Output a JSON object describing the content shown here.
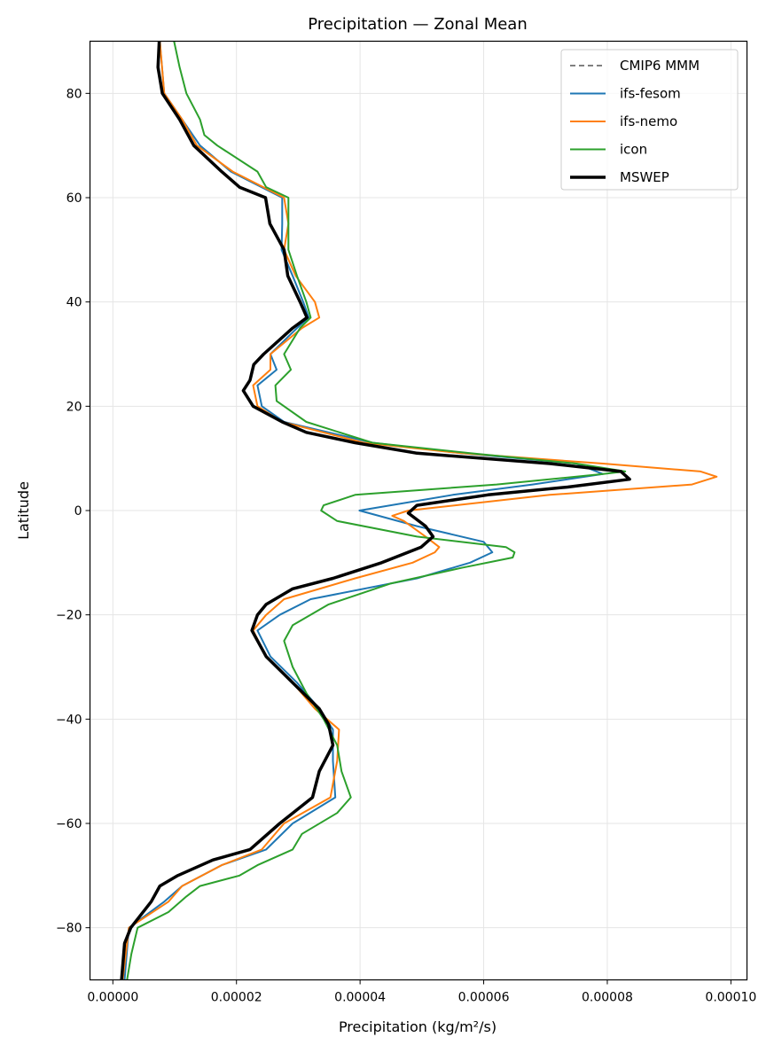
{
  "chart_data": {
    "type": "line",
    "title": "Precipitation — Zonal Mean",
    "xlabel": "Precipitation (kg/m²/s)",
    "ylabel": "Latitude",
    "xlim": [
      -3.7e-06,
      0.0001026
    ],
    "ylim": [
      -90,
      90
    ],
    "xticks": [
      0,
      2e-05,
      4e-05,
      6e-05,
      8e-05,
      0.0001
    ],
    "xtick_labels": [
      "0.00000",
      "0.00002",
      "0.00004",
      "0.00006",
      "0.00008",
      "0.00010"
    ],
    "yticks": [
      80,
      60,
      40,
      20,
      0,
      -20,
      -40,
      -60,
      -80
    ],
    "ytick_labels": [
      "80",
      "60",
      "40",
      "20",
      "0",
      "−20",
      "−40",
      "−60",
      "−80"
    ],
    "grid": true,
    "legend_position": "top-right",
    "series": [
      {
        "name": "CMIP6 MMM",
        "color": "#808080",
        "style": "dashed",
        "lat": [],
        "values": []
      },
      {
        "name": "ifs-fesom",
        "color": "#1f77b4",
        "style": "solid",
        "lat": [
          90,
          80,
          75,
          70,
          65,
          60,
          55,
          50,
          45,
          40,
          37,
          35,
          30,
          27,
          24,
          20,
          17,
          13,
          11,
          9,
          7,
          5,
          3,
          0,
          -3,
          -6,
          -8,
          -10,
          -13,
          -17,
          -20,
          -23,
          -28,
          -33,
          -38,
          -42,
          -48,
          -55,
          -60,
          -65,
          -68,
          -72,
          -75,
          -80,
          -90
        ],
        "values": [
          7.6e-06,
          8.3e-06,
          1.12e-05,
          1.41e-05,
          1.91e-05,
          2.74e-05,
          2.74e-05,
          2.73e-05,
          2.91e-05,
          3.08e-05,
          3.17e-05,
          2.98e-05,
          2.55e-05,
          2.65e-05,
          2.34e-05,
          2.41e-05,
          2.77e-05,
          4.2e-05,
          5.64e-05,
          7.5e-05,
          7.93e-05,
          6.79e-05,
          5.5e-05,
          3.99e-05,
          4.92e-05,
          6e-05,
          6.14e-05,
          5.78e-05,
          4.92e-05,
          3.2e-05,
          2.7e-05,
          2.34e-05,
          2.55e-05,
          2.98e-05,
          3.34e-05,
          3.56e-05,
          3.56e-05,
          3.6e-05,
          2.91e-05,
          2.48e-05,
          1.76e-05,
          1.12e-05,
          8.3e-06,
          2.6e-06,
          1.9e-06
        ]
      },
      {
        "name": "ifs-nemo",
        "color": "#ff7f0e",
        "style": "solid",
        "lat": [
          90,
          80,
          75,
          70,
          65,
          60,
          55,
          50,
          45,
          40,
          37,
          35,
          30,
          27,
          24,
          20,
          17,
          13,
          11,
          9,
          7.5,
          6.5,
          5,
          3,
          0,
          -1,
          -2,
          -5,
          -7,
          -8,
          -10,
          -13,
          -17,
          -20,
          -23,
          -28,
          -33,
          -38,
          -42,
          -48,
          -55,
          -60,
          -65,
          -68,
          -72,
          -75,
          -80,
          -90
        ],
        "values": [
          7.6e-06,
          8.3e-06,
          1.12e-05,
          1.36e-05,
          1.94e-05,
          2.77e-05,
          2.84e-05,
          2.77e-05,
          2.96e-05,
          3.27e-05,
          3.34e-05,
          3.06e-05,
          2.55e-05,
          2.55e-05,
          2.27e-05,
          2.34e-05,
          2.74e-05,
          4.06e-05,
          5.64e-05,
          7.93e-05,
          9.51e-05,
          9.77e-05,
          9.37e-05,
          7.07e-05,
          4.78e-05,
          4.52e-05,
          4.71e-05,
          5.06e-05,
          5.28e-05,
          5.21e-05,
          4.85e-05,
          3.92e-05,
          2.77e-05,
          2.48e-05,
          2.27e-05,
          2.48e-05,
          2.91e-05,
          3.27e-05,
          3.66e-05,
          3.63e-05,
          3.52e-05,
          2.77e-05,
          2.41e-05,
          1.76e-05,
          1.12e-05,
          9e-06,
          2.6e-06,
          1.6e-06
        ]
      },
      {
        "name": "icon",
        "color": "#2ca02c",
        "style": "solid",
        "lat": [
          90,
          85,
          80,
          75,
          72,
          70,
          65,
          62,
          60,
          55,
          50,
          45,
          40,
          37,
          35,
          30,
          27,
          24,
          21,
          17,
          13,
          11,
          9,
          7.5,
          7,
          5,
          3,
          1,
          0,
          -2,
          -5,
          -7,
          -8,
          -9,
          -11,
          -14,
          -18,
          -22,
          -25,
          -30,
          -35,
          -40,
          -45,
          -50,
          -55,
          -58,
          -62,
          -65,
          -68,
          -70,
          -72,
          -74,
          -77,
          -80,
          -85,
          -90
        ],
        "values": [
          9.9e-06,
          1.08e-05,
          1.19e-05,
          1.41e-05,
          1.48e-05,
          1.69e-05,
          2.34e-05,
          2.48e-05,
          2.84e-05,
          2.84e-05,
          2.84e-05,
          2.98e-05,
          3.13e-05,
          3.2e-05,
          3.03e-05,
          2.77e-05,
          2.88e-05,
          2.63e-05,
          2.65e-05,
          3.13e-05,
          4.2e-05,
          5.78e-05,
          7.5e-05,
          8.29e-05,
          7.93e-05,
          6.21e-05,
          3.92e-05,
          3.41e-05,
          3.37e-05,
          3.63e-05,
          4.92e-05,
          6.36e-05,
          6.5e-05,
          6.47e-05,
          5.64e-05,
          4.49e-05,
          3.49e-05,
          2.91e-05,
          2.77e-05,
          2.91e-05,
          3.13e-05,
          3.41e-05,
          3.63e-05,
          3.7e-05,
          3.85e-05,
          3.63e-05,
          3.06e-05,
          2.91e-05,
          2.34e-05,
          2.05e-05,
          1.41e-05,
          1.19e-05,
          9e-06,
          4e-06,
          3e-06,
          2.3e-06
        ]
      },
      {
        "name": "MSWEP",
        "color": "#000000",
        "style": "thick",
        "lat": [
          90,
          85,
          80,
          75,
          70,
          65,
          62,
          60,
          55,
          50,
          45,
          40,
          37,
          35,
          30,
          28,
          25,
          23,
          20,
          17,
          15,
          13,
          11,
          9,
          7.5,
          6,
          4.5,
          3,
          1,
          -0.5,
          -3,
          -5,
          -7,
          -10,
          -13,
          -15,
          -18,
          -20,
          -23,
          -28,
          -33,
          -38,
          -41,
          -45,
          -50,
          -55,
          -60,
          -65,
          -67,
          -70,
          -72,
          -75,
          -80,
          -83,
          -90
        ],
        "values": [
          7.5e-06,
          7.3e-06,
          8e-06,
          1.08e-05,
          1.31e-05,
          1.76e-05,
          2.05e-05,
          2.47e-05,
          2.54e-05,
          2.77e-05,
          2.83e-05,
          3.03e-05,
          3.14e-05,
          2.91e-05,
          2.44e-05,
          2.28e-05,
          2.22e-05,
          2.11e-05,
          2.27e-05,
          2.74e-05,
          3.13e-05,
          3.92e-05,
          4.92e-05,
          7.07e-05,
          8.22e-05,
          8.36e-05,
          7.36e-05,
          6.07e-05,
          4.92e-05,
          4.78e-05,
          5.06e-05,
          5.18e-05,
          4.99e-05,
          4.35e-05,
          3.56e-05,
          2.91e-05,
          2.48e-05,
          2.34e-05,
          2.25e-05,
          2.48e-05,
          2.91e-05,
          3.34e-05,
          3.49e-05,
          3.56e-05,
          3.34e-05,
          3.23e-05,
          2.7e-05,
          2.22e-05,
          1.62e-05,
          1.05e-05,
          7.6e-06,
          6.2e-06,
          2.9e-06,
          1.9e-06,
          1.4e-06
        ]
      }
    ]
  }
}
